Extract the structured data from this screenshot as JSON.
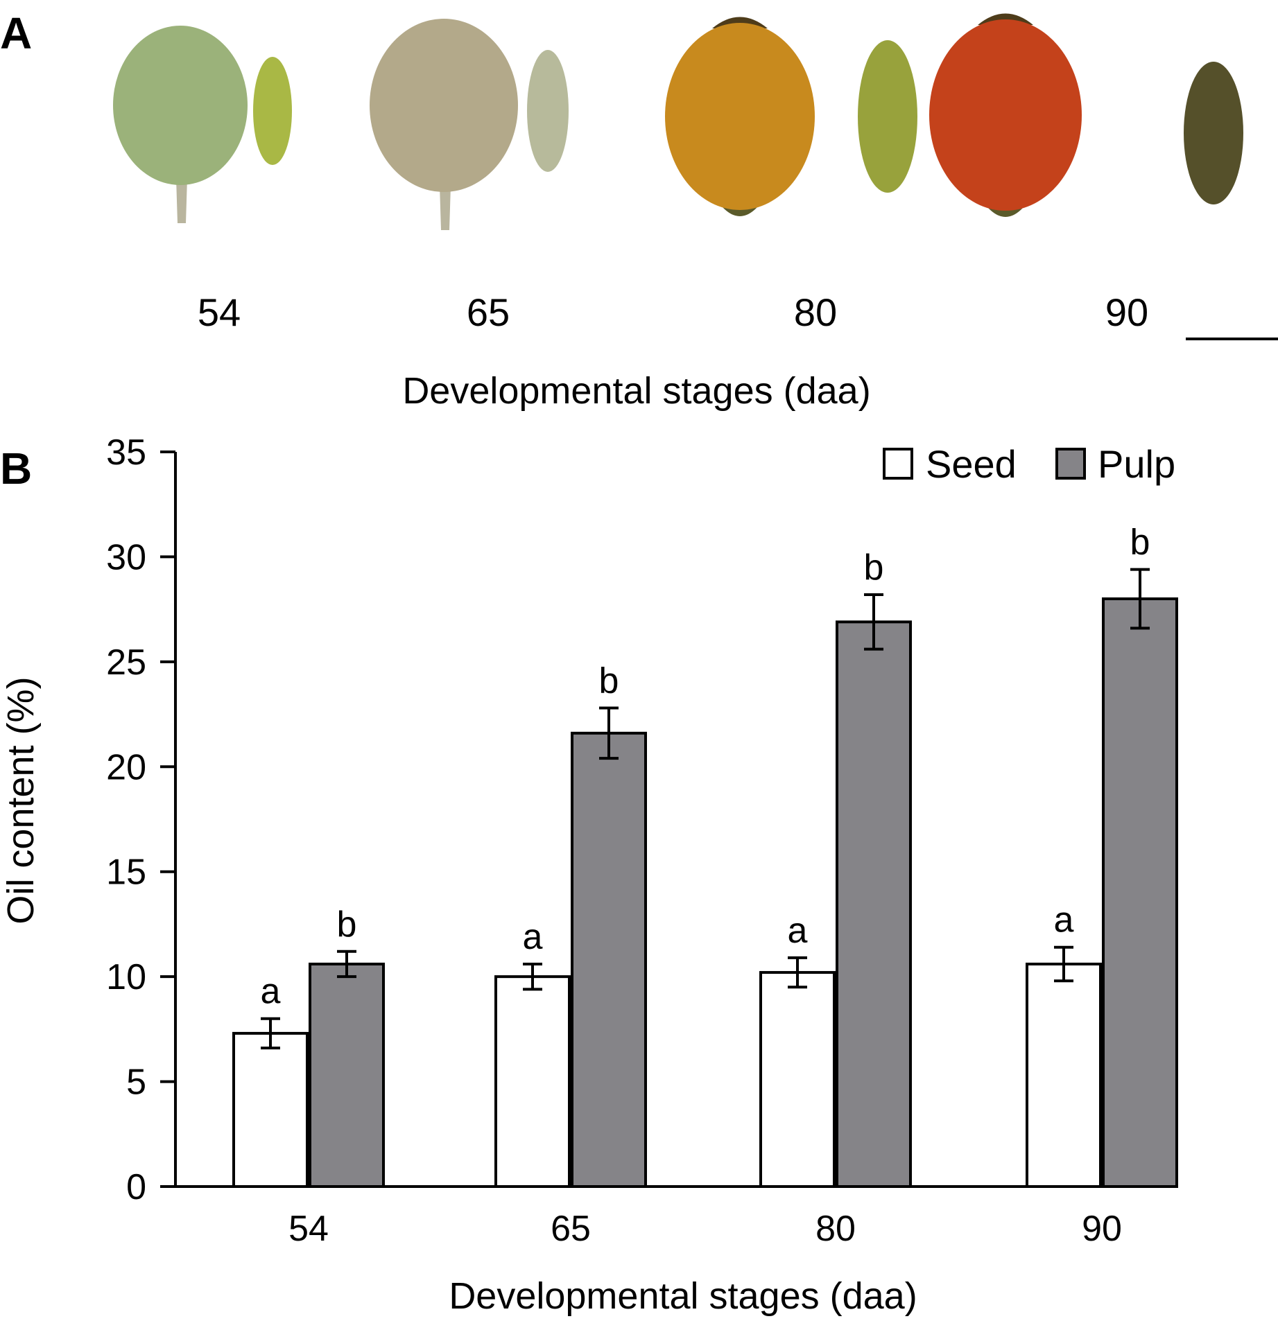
{
  "panel_a": {
    "letter": "A",
    "stages": [
      "54",
      "65",
      "80",
      "90"
    ],
    "xlabel": "Developmental stages (daa)",
    "colors": {
      "fruit": [
        "#9bb27a",
        "#b3a98a",
        "#c88a1e",
        "#c4421b"
      ],
      "seed": [
        "#a9b845",
        "#b7ba9b",
        "#98a23c",
        "#55502a"
      ]
    }
  },
  "panel_b": {
    "letter": "B",
    "chart_data": {
      "type": "bar",
      "categories": [
        "54",
        "65",
        "80",
        "90"
      ],
      "series": [
        {
          "name": "Seed",
          "values": [
            7.3,
            10.0,
            10.2,
            10.6
          ],
          "errors": [
            0.7,
            0.6,
            0.7,
            0.8
          ],
          "labels": [
            "a",
            "a",
            "a",
            "a"
          ],
          "color": "#ffffff"
        },
        {
          "name": "Pulp",
          "values": [
            10.6,
            21.6,
            26.9,
            28.0
          ],
          "errors": [
            0.6,
            1.2,
            1.3,
            1.4
          ],
          "labels": [
            "b",
            "b",
            "b",
            "b"
          ],
          "color": "#858488"
        }
      ],
      "xlabel": "Developmental stages (daa)",
      "ylabel": "Oil content (%)",
      "ylim": [
        0,
        35
      ],
      "yticks": [
        "0",
        "5",
        "10",
        "15",
        "20",
        "25",
        "30",
        "35"
      ],
      "grid": false,
      "legend": "top-right"
    }
  }
}
